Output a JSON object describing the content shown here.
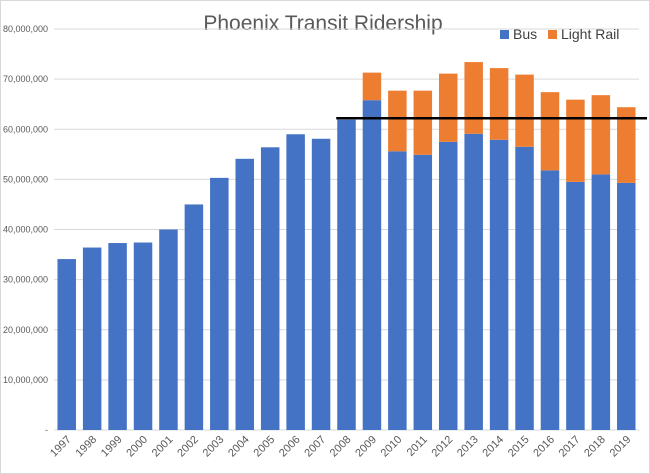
{
  "chart_data": {
    "type": "bar",
    "stacked": true,
    "title": "Phoenix Transit Ridership",
    "xlabel": "",
    "ylabel": "",
    "ylim": [
      0,
      80000000
    ],
    "y_ticks": [
      {
        "value": 0,
        "label": "-"
      },
      {
        "value": 10000000,
        "label": "10,000,000"
      },
      {
        "value": 20000000,
        "label": "20,000,000"
      },
      {
        "value": 30000000,
        "label": "30,000,000"
      },
      {
        "value": 40000000,
        "label": "40,000,000"
      },
      {
        "value": 50000000,
        "label": "50,000,000"
      },
      {
        "value": 60000000,
        "label": "60,000,000"
      },
      {
        "value": 70000000,
        "label": "70,000,000"
      },
      {
        "value": 80000000,
        "label": "80,000,000"
      }
    ],
    "grid": true,
    "legend_position": "top-right",
    "categories": [
      "1997",
      "1998",
      "1999",
      "2000",
      "2001",
      "2002",
      "2003",
      "2004",
      "2005",
      "2006",
      "2007",
      "2008",
      "2009",
      "2010",
      "2011",
      "2012",
      "2013",
      "2014",
      "2015",
      "2016",
      "2017",
      "2018",
      "2019"
    ],
    "series": [
      {
        "name": "Bus",
        "color": "#4472c4",
        "values": [
          34100000,
          36400000,
          37300000,
          37400000,
          40000000,
          45000000,
          50300000,
          54100000,
          56400000,
          59000000,
          58100000,
          61900000,
          65800000,
          55600000,
          54900000,
          57500000,
          59100000,
          57900000,
          56500000,
          51800000,
          49500000,
          51000000,
          49300000
        ]
      },
      {
        "name": "Light Rail",
        "color": "#ed7d31",
        "values": [
          0,
          0,
          0,
          0,
          0,
          0,
          0,
          0,
          0,
          0,
          0,
          0,
          5500000,
          12100000,
          12800000,
          13600000,
          14300000,
          14300000,
          14400000,
          15600000,
          16400000,
          15800000,
          15100000
        ]
      }
    ],
    "reference_line": {
      "value": 62200000,
      "start_category": "2008",
      "color": "#000000"
    }
  }
}
